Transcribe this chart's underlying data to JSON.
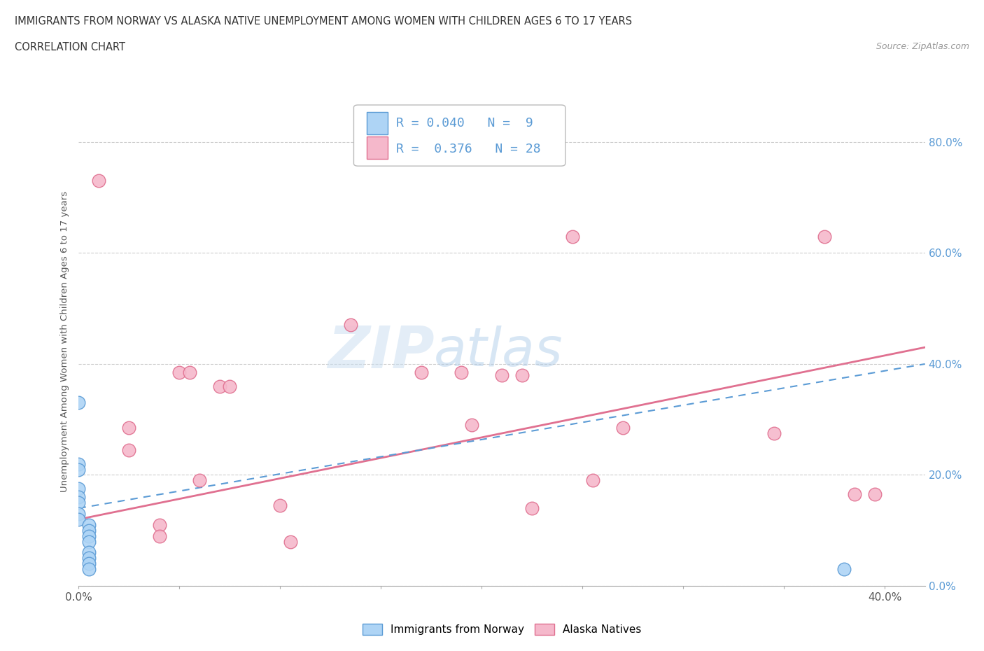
{
  "title_line1": "IMMIGRANTS FROM NORWAY VS ALASKA NATIVE UNEMPLOYMENT AMONG WOMEN WITH CHILDREN AGES 6 TO 17 YEARS",
  "title_line2": "CORRELATION CHART",
  "source_text": "Source: ZipAtlas.com",
  "ylabel_label": "Unemployment Among Women with Children Ages 6 to 17 years",
  "xlim": [
    0.0,
    0.42
  ],
  "ylim": [
    0.0,
    0.88
  ],
  "norway_points": [
    [
      0.0,
      0.33
    ],
    [
      0.0,
      0.22
    ],
    [
      0.0,
      0.21
    ],
    [
      0.0,
      0.175
    ],
    [
      0.0,
      0.16
    ],
    [
      0.0,
      0.15
    ],
    [
      0.0,
      0.13
    ],
    [
      0.0,
      0.12
    ],
    [
      0.005,
      0.11
    ],
    [
      0.005,
      0.1
    ],
    [
      0.005,
      0.09
    ],
    [
      0.005,
      0.08
    ],
    [
      0.005,
      0.06
    ],
    [
      0.005,
      0.05
    ],
    [
      0.005,
      0.04
    ],
    [
      0.005,
      0.03
    ],
    [
      0.38,
      0.03
    ]
  ],
  "alaska_points": [
    [
      0.01,
      0.73
    ],
    [
      0.025,
      0.285
    ],
    [
      0.025,
      0.245
    ],
    [
      0.04,
      0.11
    ],
    [
      0.04,
      0.09
    ],
    [
      0.05,
      0.385
    ],
    [
      0.055,
      0.385
    ],
    [
      0.06,
      0.19
    ],
    [
      0.07,
      0.36
    ],
    [
      0.075,
      0.36
    ],
    [
      0.1,
      0.145
    ],
    [
      0.105,
      0.08
    ],
    [
      0.135,
      0.47
    ],
    [
      0.17,
      0.385
    ],
    [
      0.19,
      0.385
    ],
    [
      0.195,
      0.29
    ],
    [
      0.21,
      0.38
    ],
    [
      0.22,
      0.38
    ],
    [
      0.225,
      0.14
    ],
    [
      0.245,
      0.63
    ],
    [
      0.255,
      0.19
    ],
    [
      0.27,
      0.285
    ],
    [
      0.345,
      0.275
    ],
    [
      0.37,
      0.63
    ],
    [
      0.385,
      0.165
    ],
    [
      0.395,
      0.165
    ]
  ],
  "norway_color": "#aed4f5",
  "norway_edge_color": "#5b9bd5",
  "alaska_color": "#f5b8cb",
  "alaska_edge_color": "#e07090",
  "norway_R": 0.04,
  "norway_N": 9,
  "alaska_R": 0.376,
  "alaska_N": 28,
  "alaska_trend_x": [
    0.0,
    0.42
  ],
  "alaska_trend_y": [
    0.12,
    0.43
  ],
  "norway_trend_x": [
    0.0,
    0.42
  ],
  "norway_trend_y": [
    0.14,
    0.4
  ],
  "norway_legend_label": "Immigrants from Norway",
  "alaska_legend_label": "Alaska Natives",
  "watermark_zip": "ZIP",
  "watermark_atlas": "atlas",
  "marker_size": 180,
  "background_color": "#ffffff",
  "grid_color": "#cccccc",
  "right_tick_color": "#5b9bd5",
  "left_tick_color": "#888888",
  "y_ticks": [
    0.0,
    0.2,
    0.4,
    0.6,
    0.8
  ],
  "x_ticks": [
    0.0,
    0.05,
    0.1,
    0.15,
    0.2,
    0.25,
    0.3,
    0.35,
    0.4
  ],
  "x_tick_labels_show": [
    "0.0%",
    "",
    "",
    "",
    "",
    "",
    "",
    "",
    "40.0%"
  ]
}
